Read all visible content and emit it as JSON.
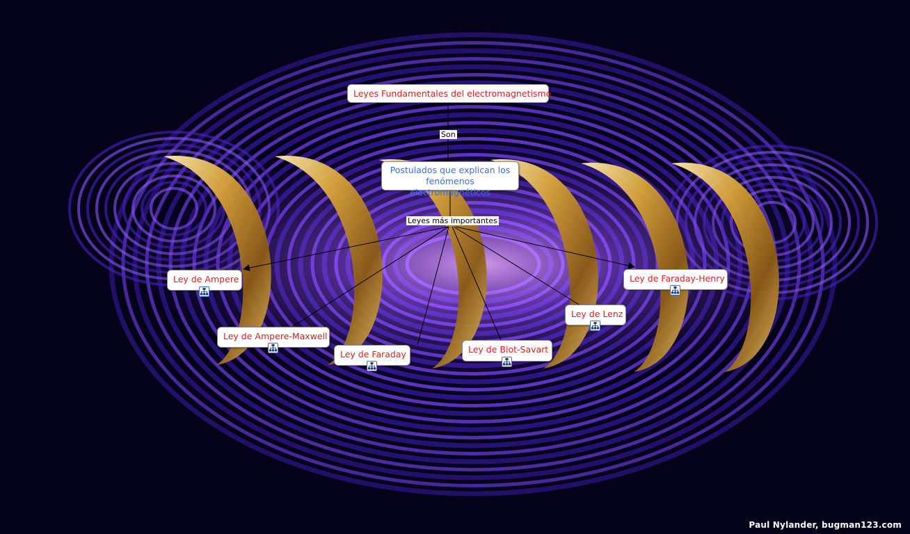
{
  "root": {
    "label": "Leyes Fundamentales del electromagnetismo",
    "color": "#d42020"
  },
  "link_son": {
    "label": "Son"
  },
  "postulados": {
    "label": "Postulados que explican los fenómenos electromagnéticos",
    "color": "#3a6fd0"
  },
  "link_leyes": {
    "label": "Leyes más importantes"
  },
  "laws": [
    {
      "label": "Ley de Ampere"
    },
    {
      "label": "Ley de Ampere-Maxwell"
    },
    {
      "label": "Ley de Faraday"
    },
    {
      "label": "Ley de Biot-Savart"
    },
    {
      "label": "Ley de Lenz"
    },
    {
      "label": "Ley de Faraday-Henry"
    }
  ],
  "icons": {
    "sub_map": "sub-map-icon"
  },
  "credit": "Paul Nylander, bugman123.com",
  "colors": {
    "background": "#05031a",
    "field": "#6a3cff",
    "coil": "#c9972a"
  }
}
